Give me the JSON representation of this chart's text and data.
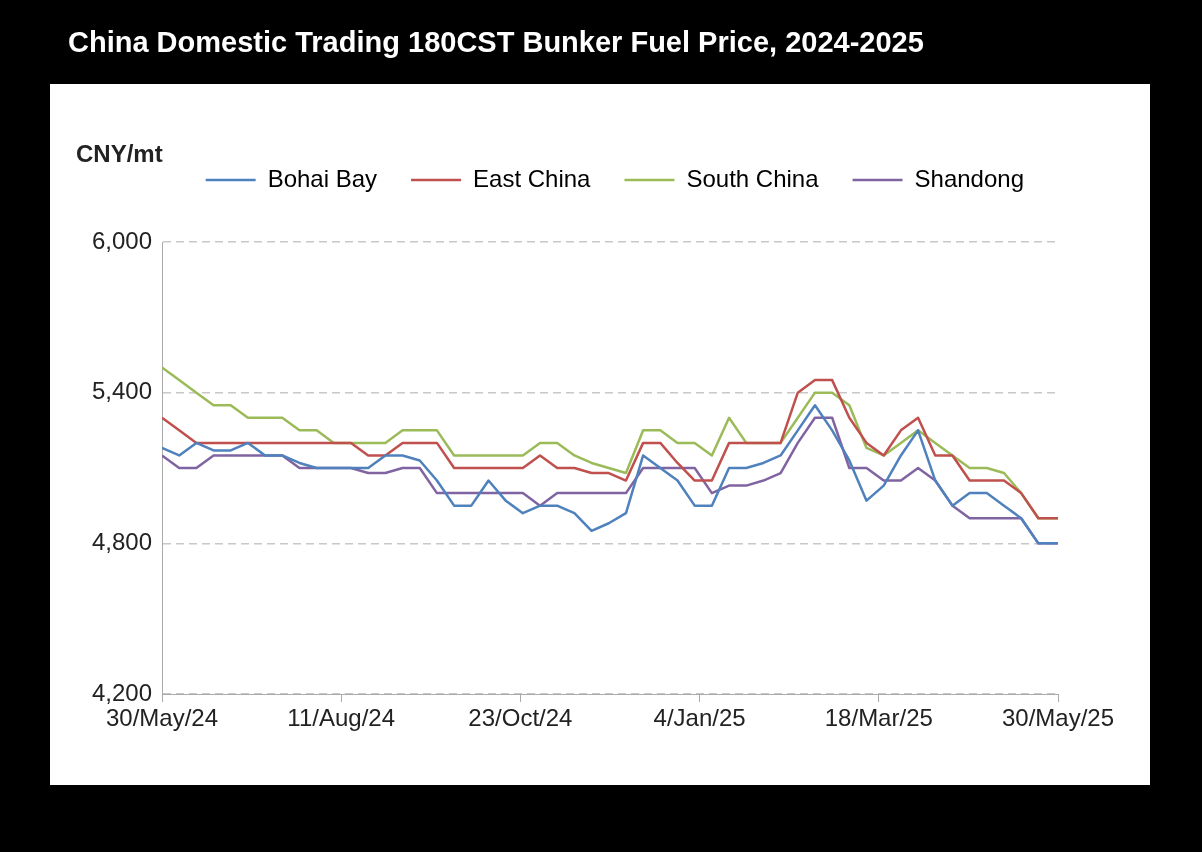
{
  "chart_data": {
    "type": "line",
    "title": "China Domestic Trading 180CST Bunker Fuel Price, 2024-2025",
    "ylabel": "CNY/mt",
    "x": [
      "2024-05-30",
      "2024-06-06",
      "2024-06-13",
      "2024-06-20",
      "2024-06-27",
      "2024-07-04",
      "2024-07-11",
      "2024-07-18",
      "2024-07-25",
      "2024-08-01",
      "2024-08-08",
      "2024-08-15",
      "2024-08-22",
      "2024-08-29",
      "2024-09-05",
      "2024-09-12",
      "2024-09-19",
      "2024-09-26",
      "2024-10-03",
      "2024-10-10",
      "2024-10-17",
      "2024-10-24",
      "2024-10-31",
      "2024-11-07",
      "2024-11-14",
      "2024-11-21",
      "2024-11-28",
      "2024-12-05",
      "2024-12-12",
      "2024-12-19",
      "2024-12-26",
      "2025-01-02",
      "2025-01-09",
      "2025-01-16",
      "2025-01-23",
      "2025-01-30",
      "2025-02-06",
      "2025-02-13",
      "2025-02-20",
      "2025-02-27",
      "2025-03-06",
      "2025-03-13",
      "2025-03-20",
      "2025-03-27",
      "2025-04-03",
      "2025-04-10",
      "2025-04-17",
      "2025-04-24",
      "2025-05-01",
      "2025-05-08",
      "2025-05-15",
      "2025-05-22",
      "2025-05-29",
      "2025-05-30"
    ],
    "series": [
      {
        "name": "Bohai Bay",
        "color": "#4f81bd",
        "values": [
          5180,
          5150,
          5200,
          5170,
          5170,
          5200,
          5150,
          5150,
          5120,
          5100,
          5100,
          5100,
          5100,
          5150,
          5150,
          5130,
          5050,
          4950,
          4950,
          5050,
          4970,
          4920,
          4950,
          4950,
          4920,
          4850,
          4880,
          4920,
          5150,
          5100,
          5050,
          4950,
          4950,
          5100,
          5100,
          5120,
          5150,
          5250,
          5350,
          5250,
          5130,
          4970,
          5030,
          5150,
          5250,
          5050,
          4950,
          5000,
          5000,
          4950,
          4900,
          4800,
          4800,
          4800
        ]
      },
      {
        "name": "East China",
        "color": "#c0504d",
        "values": [
          5300,
          5250,
          5200,
          5200,
          5200,
          5200,
          5200,
          5200,
          5200,
          5200,
          5200,
          5200,
          5150,
          5150,
          5200,
          5200,
          5200,
          5100,
          5100,
          5100,
          5100,
          5100,
          5150,
          5100,
          5100,
          5080,
          5080,
          5050,
          5200,
          5200,
          5120,
          5050,
          5050,
          5200,
          5200,
          5200,
          5200,
          5400,
          5450,
          5450,
          5300,
          5200,
          5150,
          5250,
          5300,
          5150,
          5150,
          5050,
          5050,
          5050,
          5000,
          4900,
          4900,
          4900
        ]
      },
      {
        "name": "South China",
        "color": "#9bbb59",
        "values": [
          5500,
          5450,
          5400,
          5350,
          5350,
          5300,
          5300,
          5300,
          5250,
          5250,
          5200,
          5200,
          5200,
          5200,
          5250,
          5250,
          5250,
          5150,
          5150,
          5150,
          5150,
          5150,
          5200,
          5200,
          5150,
          5120,
          5100,
          5080,
          5250,
          5250,
          5200,
          5200,
          5150,
          5300,
          5200,
          5200,
          5200,
          5300,
          5400,
          5400,
          5350,
          5180,
          5150,
          5200,
          5250,
          5200,
          5150,
          5100,
          5100,
          5080,
          5000,
          4900,
          4900,
          4900
        ]
      },
      {
        "name": "Shandong",
        "color": "#8064a2",
        "values": [
          5150,
          5100,
          5100,
          5150,
          5150,
          5150,
          5150,
          5150,
          5100,
          5100,
          5100,
          5100,
          5080,
          5080,
          5100,
          5100,
          5000,
          5000,
          5000,
          5000,
          5000,
          5000,
          4950,
          5000,
          5000,
          5000,
          5000,
          5000,
          5100,
          5100,
          5100,
          5100,
          5000,
          5030,
          5030,
          5050,
          5080,
          5200,
          5300,
          5300,
          5100,
          5100,
          5050,
          5050,
          5100,
          5050,
          4950,
          4900,
          4900,
          4900,
          4900,
          4800,
          4800,
          4800
        ]
      }
    ],
    "xlim": [
      "2024-05-30",
      "2025-05-30"
    ],
    "xticks": [
      {
        "value": "2024-05-30",
        "label": "30/May/24"
      },
      {
        "value": "2024-08-11",
        "label": "11/Aug/24"
      },
      {
        "value": "2024-10-23",
        "label": "23/Oct/24"
      },
      {
        "value": "2025-01-04",
        "label": "4/Jan/25"
      },
      {
        "value": "2025-03-18",
        "label": "18/Mar/25"
      },
      {
        "value": "2025-05-30",
        "label": "30/May/25"
      }
    ],
    "ylim": [
      4200,
      6000
    ],
    "yticks": [
      {
        "value": 4200,
        "label": "4,200"
      },
      {
        "value": 4800,
        "label": "4,800"
      },
      {
        "value": 5400,
        "label": "5,400"
      },
      {
        "value": 6000,
        "label": "6,000"
      }
    ],
    "grid": "y",
    "legend": "top",
    "marker": "none",
    "line_style": "solid"
  }
}
